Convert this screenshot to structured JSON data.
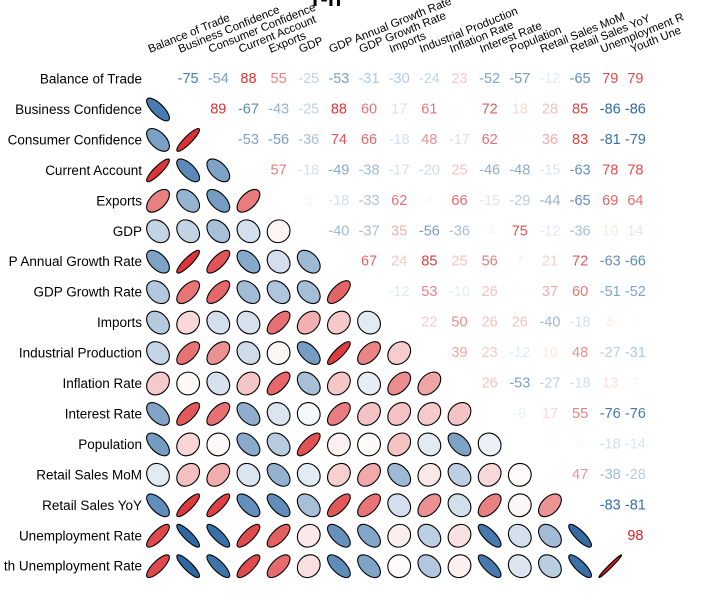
{
  "chart_data": {
    "type": "heatmap",
    "title": "",
    "lower_glyph": "ellipse",
    "upper_glyph": "number",
    "color_scale": {
      "negative": "#0b4f94",
      "neutral": "#ffffff",
      "positive": "#d7191c"
    },
    "variables": [
      "Balance of Trade",
      "Business Confidence",
      "Consumer Confidence",
      "Current Account",
      "Exports",
      "GDP",
      "GDP Annual Growth Rate",
      "GDP Growth Rate",
      "Imports",
      "Industrial Production",
      "Inflation Rate",
      "Interest Rate",
      "Population",
      "Retail Sales MoM",
      "Retail Sales YoY",
      "Unemployment Rate",
      "Youth Unemployment Rate"
    ],
    "row_labels_visible": [
      "Balance of Trade",
      "Business Confidence",
      "Consumer Confidence",
      "Current Account",
      "Exports",
      "GDP",
      "P Annual Growth Rate",
      "GDP Growth Rate",
      "Imports",
      "Industrial Production",
      "Inflation Rate",
      "Interest Rate",
      "Population",
      "Retail Sales MoM",
      "Retail Sales YoY",
      "Unemployment Rate",
      "th Unemployment Rate"
    ],
    "column_labels_visible": [
      "Balance of Trade",
      "Business Confidence",
      "Consumer Confidence",
      "Current Account",
      "Exports",
      "GDP",
      "GDP Annual Growth Rate",
      "GDP Growth Rate",
      "Imports",
      "Industrial Production",
      "Inflation Rate",
      "Interest Rate",
      "Population",
      "Retail Sales MoM",
      "Retail Sales YoY",
      "Unemployment R",
      "Youth Une"
    ],
    "upper_values": [
      [
        -75,
        -54,
        88,
        55,
        -25,
        -53,
        -31,
        -30,
        -24,
        23,
        -52,
        -57,
        -12,
        -65,
        79,
        79
      ],
      [
        89,
        -67,
        -43,
        -25,
        88,
        60,
        17,
        61,
        2,
        72,
        18,
        28,
        85,
        -86,
        -86
      ],
      [
        -53,
        -56,
        -36,
        74,
        66,
        -18,
        48,
        -17,
        62,
        3,
        36,
        83,
        -81,
        -79
      ],
      [
        57,
        -18,
        -49,
        -38,
        -17,
        -20,
        25,
        -46,
        -48,
        -15,
        -63,
        78,
        78
      ],
      [
        5,
        -18,
        -33,
        62,
        4,
        66,
        -15,
        -29,
        -44,
        -65,
        69,
        64
      ],
      [
        -40,
        -37,
        35,
        -56,
        -36,
        -4,
        75,
        -12,
        -36,
        10,
        14
      ],
      [
        67,
        24,
        85,
        25,
        56,
        7,
        21,
        72,
        -63,
        -66
      ],
      [
        -12,
        53,
        -10,
        26,
        2,
        37,
        60,
        -51,
        -52
      ],
      [
        22,
        50,
        26,
        26,
        -40,
        -18,
        8,
        2
      ],
      [
        39,
        23,
        -12,
        10,
        48,
        -27,
        -31
      ],
      [
        26,
        -53,
        -27,
        -18,
        13,
        7
      ],
      [
        -8,
        17,
        55,
        -76,
        -76
      ],
      [
        2,
        4,
        -18,
        -14
      ],
      [
        47,
        -38,
        -28
      ],
      [
        -83,
        -81
      ],
      [
        98
      ]
    ]
  }
}
